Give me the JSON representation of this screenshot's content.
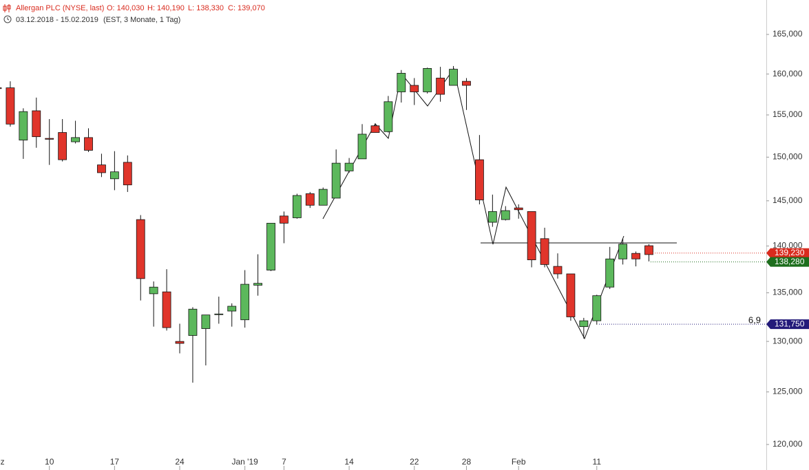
{
  "chart_data": {
    "type": "candlestick",
    "title": "Allergan PLC (NYSE, last)",
    "quote": [
      "O: 140,030",
      "H: 140,190",
      "L: 138,330",
      "C: 139,070"
    ],
    "subtitle": "03.12.2018 - 15.02.2019",
    "subtitle_note": "(EST, 3 Monate, 1 Tag)",
    "annotation": "6,9",
    "log_scale": true,
    "up_color": "#5cb85c",
    "down_color": "#e0352b",
    "categories": [
      "Dez",
      null,
      null,
      null,
      "10",
      null,
      null,
      null,
      null,
      "17",
      null,
      null,
      null,
      null,
      "24",
      null,
      null,
      null,
      null,
      "Jan '19",
      null,
      null,
      "7",
      null,
      null,
      null,
      null,
      "14",
      null,
      null,
      null,
      null,
      "22",
      null,
      null,
      null,
      "28",
      null,
      null,
      null,
      "Feb",
      null,
      null,
      null,
      null,
      null,
      "11",
      null,
      null,
      null,
      null
    ],
    "open": [
      158300,
      158300,
      152000,
      155500,
      152200,
      152900,
      151800,
      152300,
      149100,
      147500,
      149400,
      142900,
      134900,
      135100,
      130000,
      130600,
      131300,
      132800,
      133100,
      132200,
      135800,
      137400,
      143300,
      143100,
      145800,
      144500,
      145300,
      148400,
      149800,
      153700,
      153000,
      157800,
      158600,
      157800,
      159500,
      158600,
      159100,
      149700,
      142600,
      142900,
      144200,
      143800,
      140800,
      137800,
      137000,
      131500,
      132100,
      135600,
      138600,
      139200,
      140030
    ],
    "high": [
      158600,
      159100,
      155800,
      157100,
      154500,
      154500,
      154300,
      153400,
      150400,
      150700,
      150200,
      143400,
      136200,
      137500,
      131800,
      133500,
      132700,
      134600,
      133900,
      137400,
      139100,
      142500,
      143800,
      145800,
      146000,
      146500,
      150900,
      149900,
      153900,
      154000,
      157300,
      160500,
      159500,
      160800,
      160900,
      161000,
      159500,
      152600,
      145700,
      144400,
      144600,
      143800,
      142000,
      139200,
      137000,
      132400,
      134800,
      139900,
      140800,
      139400,
      140190
    ],
    "low": [
      158000,
      153600,
      149800,
      151100,
      149100,
      149500,
      151600,
      150600,
      147700,
      146200,
      146000,
      134200,
      131500,
      131100,
      128800,
      125900,
      127600,
      131800,
      131500,
      131400,
      134700,
      137300,
      140300,
      143000,
      144200,
      144500,
      145300,
      148200,
      149800,
      152900,
      152900,
      156500,
      156200,
      157600,
      156600,
      158600,
      155600,
      144600,
      142100,
      142800,
      143000,
      137700,
      137700,
      136500,
      132100,
      130300,
      131700,
      135400,
      138000,
      137800,
      138330
    ],
    "close": [
      158200,
      153900,
      155400,
      152400,
      152100,
      149700,
      152300,
      150800,
      148200,
      148300,
      146800,
      136500,
      135600,
      131400,
      129800,
      133300,
      132700,
      132800,
      133600,
      135900,
      136000,
      142500,
      142500,
      145600,
      144500,
      146300,
      149300,
      149300,
      152700,
      152900,
      156600,
      160100,
      157800,
      160700,
      157500,
      160600,
      158600,
      145100,
      143800,
      143900,
      144000,
      138500,
      138000,
      137000,
      132500,
      132100,
      134700,
      138600,
      140200,
      138600,
      139070
    ],
    "ylim": [
      119100,
      169470
    ],
    "yticks": [
      {
        "value": 120000,
        "label": "120,000"
      },
      {
        "value": 125000,
        "label": "125,000"
      },
      {
        "value": 130000,
        "label": "130,000"
      },
      {
        "value": 135000,
        "label": "135,000"
      },
      {
        "value": 140000,
        "label": "140,000"
      },
      {
        "value": 145000,
        "label": "145,000"
      },
      {
        "value": 150000,
        "label": "150,000"
      },
      {
        "value": 155000,
        "label": "155,000"
      },
      {
        "value": 160000,
        "label": "160,000"
      },
      {
        "value": 165000,
        "label": "165,000"
      }
    ],
    "price_tags": [
      {
        "value": 139230,
        "label": "139,230",
        "color": "#d92b1e"
      },
      {
        "value": 138280,
        "label": "138,280",
        "color": "#1d6e1d"
      },
      {
        "value": 131750,
        "label": "131,750",
        "color": "#231a7a"
      }
    ]
  }
}
